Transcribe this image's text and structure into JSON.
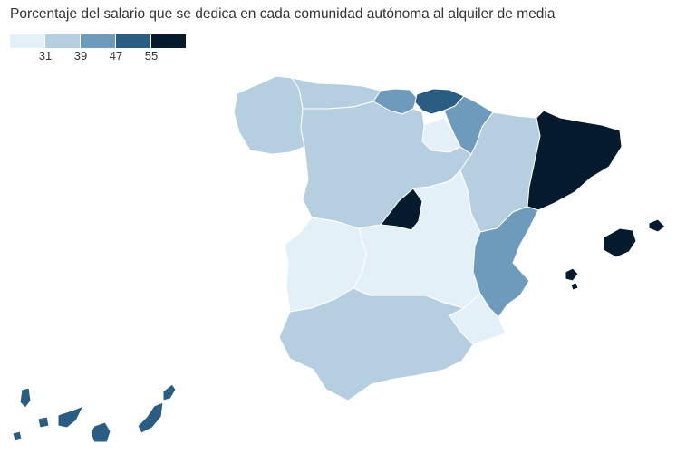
{
  "title": "Porcentaje del salario que se dedica en cada comunidad autónoma al alquiler de media",
  "legend": {
    "colors": [
      "#e3f0f7",
      "#b6cfe0",
      "#6e9bbb",
      "#2b5c82",
      "#061a2e"
    ],
    "ticks": [
      "31",
      "39",
      "47",
      "55"
    ]
  },
  "regions": [
    {
      "name": "Galicia",
      "bucket": 1
    },
    {
      "name": "Asturias",
      "bucket": 1
    },
    {
      "name": "Cantabria",
      "bucket": 2
    },
    {
      "name": "País Vasco",
      "bucket": 3
    },
    {
      "name": "Navarra",
      "bucket": 2
    },
    {
      "name": "La Rioja",
      "bucket": 0
    },
    {
      "name": "Aragón",
      "bucket": 1
    },
    {
      "name": "Cataluña",
      "bucket": 4
    },
    {
      "name": "Castilla y León",
      "bucket": 1
    },
    {
      "name": "Madrid",
      "bucket": 4
    },
    {
      "name": "Castilla-La Mancha",
      "bucket": 0
    },
    {
      "name": "Extremadura",
      "bucket": 0
    },
    {
      "name": "Comunidad Valenciana",
      "bucket": 2
    },
    {
      "name": "Murcia",
      "bucket": 0
    },
    {
      "name": "Andalucía",
      "bucket": 1
    },
    {
      "name": "Islas Baleares",
      "bucket": 4
    },
    {
      "name": "Canarias",
      "bucket": 3
    }
  ]
}
